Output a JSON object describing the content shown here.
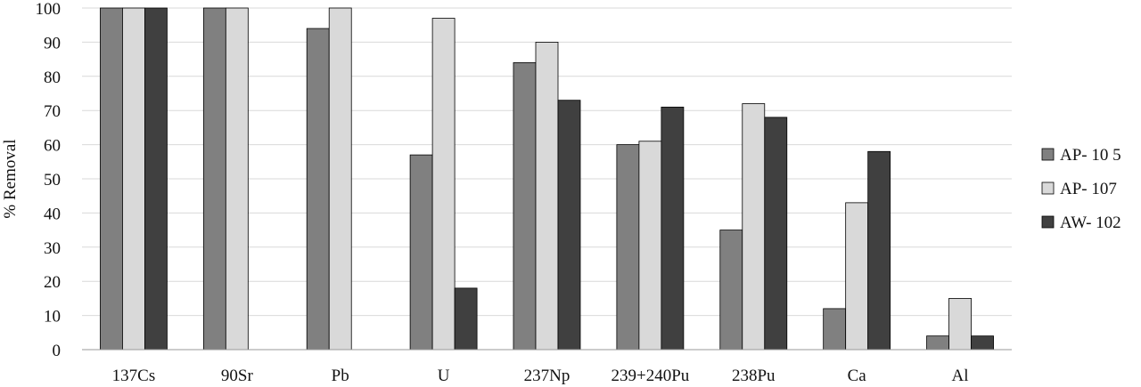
{
  "chart_data": {
    "type": "bar",
    "ylabel": "% Removal",
    "xlabel": "",
    "ylim": [
      0,
      100
    ],
    "yticks": [
      0,
      10,
      20,
      30,
      40,
      50,
      60,
      70,
      80,
      90,
      100
    ],
    "grid": true,
    "legend_position": "right",
    "categories": [
      "137Cs",
      "90Sr",
      "Pb",
      "U",
      "237Np",
      "239+240Pu",
      "238Pu",
      "Ca",
      "Al"
    ],
    "series": [
      {
        "name": "AP- 10 5",
        "color": "#808080",
        "values": [
          100,
          100,
          94,
          57,
          84,
          60,
          35,
          12,
          4
        ]
      },
      {
        "name": "AP- 107",
        "color": "#d9d9d9",
        "values": [
          100,
          100,
          100,
          97,
          90,
          61,
          72,
          43,
          15
        ]
      },
      {
        "name": "AW- 102",
        "color": "#404040",
        "values": [
          100,
          null,
          null,
          18,
          73,
          71,
          68,
          58,
          4
        ]
      }
    ]
  }
}
